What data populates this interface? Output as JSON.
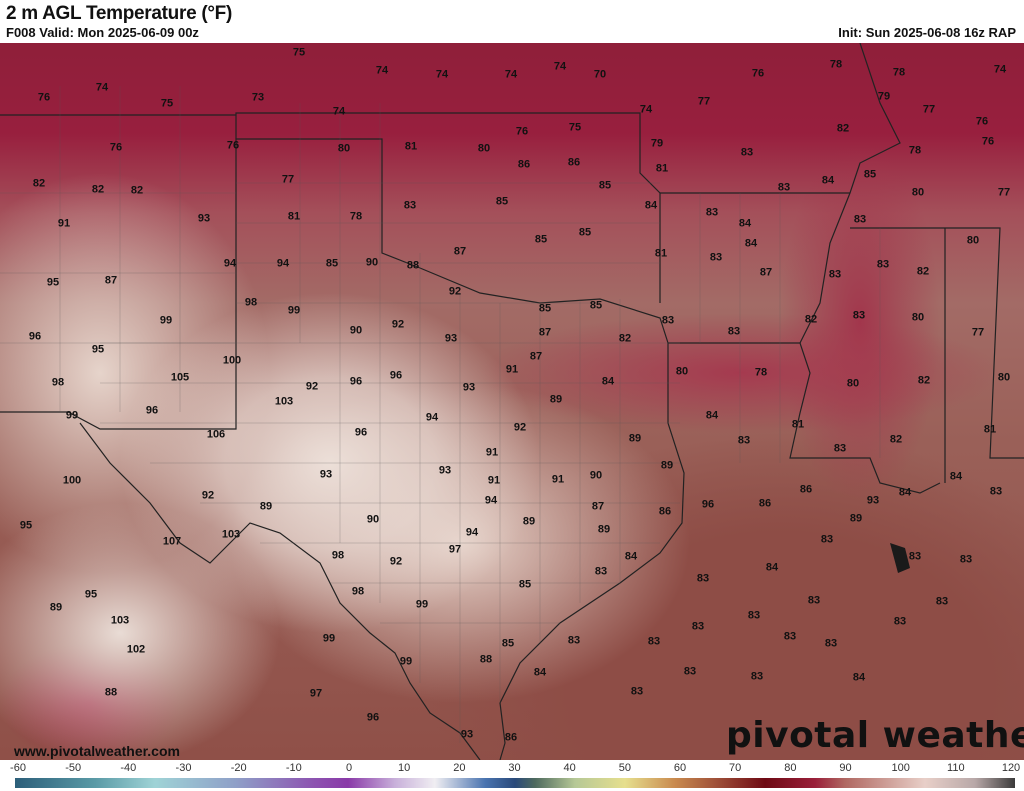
{
  "header": {
    "title": "2 m AGL Temperature (°F)",
    "valid": "F008 Valid: Mon 2025-06-09 00z",
    "init": "Init: Sun 2025-06-08 16z RAP"
  },
  "map": {
    "units": "°F",
    "labels": [
      "76",
      "74",
      "75",
      "73",
      "75",
      "74",
      "74",
      "74",
      "74",
      "70",
      "74",
      "74",
      "77",
      "76",
      "78",
      "78",
      "74",
      "79",
      "77",
      "76",
      "82",
      "76",
      "78",
      "76",
      "76",
      "80",
      "81",
      "80",
      "76",
      "75",
      "79",
      "83",
      "86",
      "86",
      "81",
      "82",
      "82",
      "82",
      "77",
      "85",
      "83",
      "84",
      "85",
      "80",
      "77",
      "81",
      "78",
      "83",
      "85",
      "84",
      "83",
      "84",
      "83",
      "91",
      "93",
      "85",
      "85",
      "84",
      "80",
      "94",
      "94",
      "85",
      "90",
      "88",
      "87",
      "81",
      "83",
      "87",
      "83",
      "83",
      "82",
      "95",
      "87",
      "92",
      "98",
      "99",
      "85",
      "85",
      "83",
      "83",
      "82",
      "83",
      "80",
      "77",
      "99",
      "90",
      "92",
      "93",
      "87",
      "82",
      "96",
      "95",
      "100",
      "87",
      "80",
      "78",
      "80",
      "82",
      "80",
      "91",
      "105",
      "98",
      "92",
      "96",
      "96",
      "93",
      "84",
      "89",
      "103",
      "99",
      "96",
      "94",
      "84",
      "81",
      "81",
      "106",
      "96",
      "92",
      "89",
      "83",
      "82",
      "83",
      "91",
      "89",
      "93",
      "91",
      "91",
      "90",
      "100",
      "93",
      "92",
      "94",
      "84",
      "83",
      "86",
      "84",
      "89",
      "96",
      "86",
      "86",
      "87",
      "93",
      "89",
      "90",
      "89",
      "95",
      "103",
      "94",
      "89",
      "107",
      "83",
      "97",
      "98",
      "92",
      "84",
      "83",
      "83",
      "84",
      "83",
      "83",
      "85",
      "98",
      "95",
      "89",
      "83",
      "83",
      "99",
      "103",
      "83",
      "83",
      "83",
      "83",
      "99",
      "83",
      "83",
      "85",
      "83",
      "102",
      "88",
      "99",
      "84",
      "83",
      "83",
      "84",
      "88",
      "97",
      "83",
      "96",
      "93",
      "86"
    ]
  },
  "watermark": {
    "url": "www.pivotalweather.com",
    "logo": "pivotal weather"
  },
  "colorbar": {
    "ticks": [
      "-60",
      "-50",
      "-40",
      "-30",
      "-20",
      "-10",
      "0",
      "10",
      "20",
      "30",
      "40",
      "50",
      "60",
      "70",
      "80",
      "90",
      "100",
      "110",
      "120"
    ],
    "range": [
      -60,
      120
    ]
  }
}
